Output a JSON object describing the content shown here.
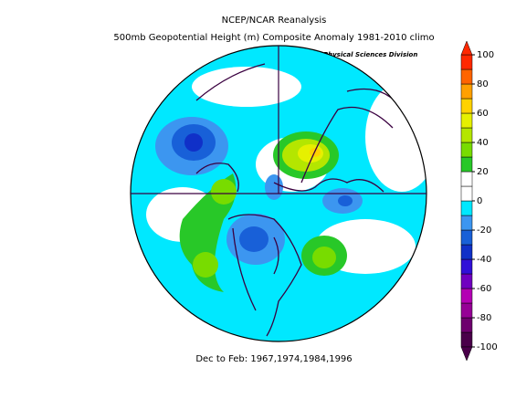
{
  "header": {
    "title": "NCEP/NCAR Reanalysis",
    "subtitle": "500mb Geopotential Height (m) Composite Anomaly 1981-2010 climo",
    "credit": "NOAA/ESRL Physical Sciences Division"
  },
  "caption": "Dec to Feb: 1967,1974,1984,1996",
  "colorbar": {
    "levels": [
      -100,
      -90,
      -80,
      -70,
      -60,
      -50,
      -40,
      -30,
      -20,
      -10,
      0,
      10,
      20,
      30,
      40,
      50,
      60,
      70,
      80,
      90,
      100
    ],
    "colors": [
      "#4a004a",
      "#6e006e",
      "#960096",
      "#b400b4",
      "#7000c0",
      "#3010d8",
      "#1030c8",
      "#1860d8",
      "#3c96f0",
      "#00e8ff",
      "#ffffff",
      "#ffffff",
      "#28c828",
      "#78dc00",
      "#b4e600",
      "#e6f000",
      "#ffd200",
      "#ffa000",
      "#ff6400",
      "#ff2800"
    ],
    "ticks": [
      100,
      80,
      60,
      40,
      20,
      0,
      -20,
      -40,
      -60,
      -80,
      -100
    ]
  }
}
